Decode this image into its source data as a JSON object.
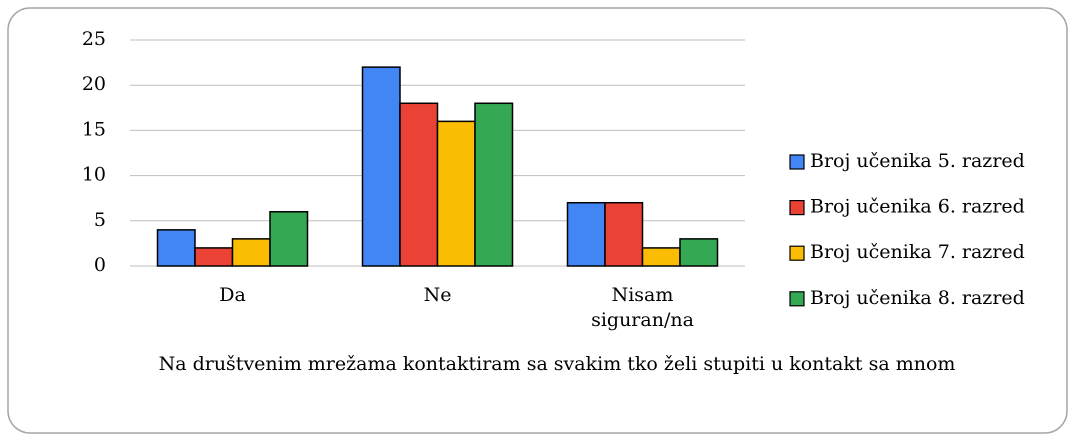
{
  "chart_data": {
    "type": "bar",
    "x_label": "Na društvenim mrežama kontaktiram sa svakim tko želi stupiti u kontakt sa mnom",
    "categories": [
      "Da",
      "Ne",
      "Nisam siguran/na"
    ],
    "series": [
      {
        "name": "Broj učenika 5. razred",
        "color": "#4285f4",
        "values": [
          4,
          22,
          7
        ]
      },
      {
        "name": "Broj učenika 6. razred",
        "color": "#ea4335",
        "values": [
          2,
          18,
          7
        ]
      },
      {
        "name": "Broj učenika 7. razred",
        "color": "#fbbc04",
        "values": [
          3,
          16,
          2
        ]
      },
      {
        "name": "Broj učenika 8. razred",
        "color": "#34a853",
        "values": [
          6,
          18,
          3
        ]
      }
    ],
    "ylim": [
      0,
      25
    ],
    "yticks": [
      0,
      5,
      10,
      15,
      20,
      25
    ],
    "grid": true,
    "legend": "right"
  }
}
